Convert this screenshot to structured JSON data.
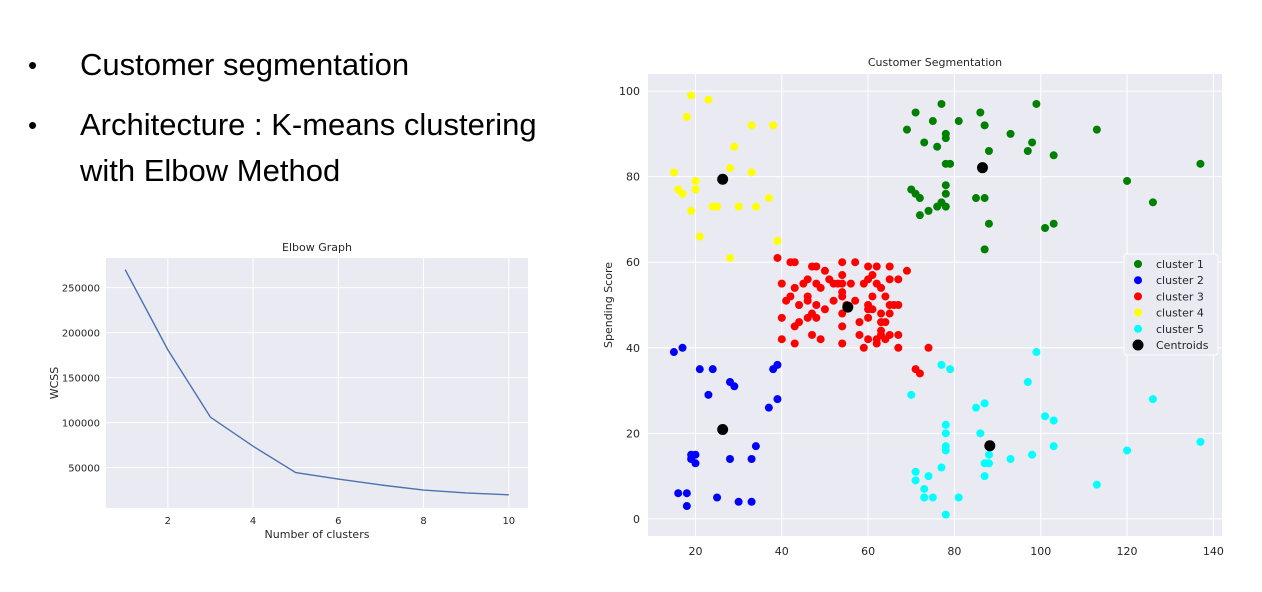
{
  "bullets": [
    {
      "text": "Customer segmentation"
    },
    {
      "text": "Architecture : K-means clustering with Elbow Method"
    }
  ],
  "colors": {
    "plot_bg": "#eaeaf2",
    "grid": "#ffffff",
    "elbow_line": "#4c72b0",
    "cluster_1": "#008000",
    "cluster_2": "#0000ff",
    "cluster_3": "#ff0000",
    "cluster_4": "#ffff00",
    "cluster_5": "#00ffff",
    "centroids": "#000000"
  },
  "chart_data": [
    {
      "type": "line",
      "title": "Elbow Graph",
      "xlabel": "Number of clusters",
      "ylabel": "WCSS",
      "x": [
        1,
        2,
        3,
        4,
        5,
        6,
        7,
        8,
        9,
        10
      ],
      "series": [
        {
          "values": [
            270000,
            181000,
            106000,
            73700,
            44400,
            37200,
            30600,
            25000,
            21800,
            19700
          ]
        }
      ],
      "xticks": [
        2,
        4,
        6,
        8,
        10
      ],
      "yticks": [
        50000,
        100000,
        150000,
        200000,
        250000
      ],
      "xlim": [
        0.55,
        10.45
      ],
      "ylim": [
        5000,
        283000
      ],
      "grid": true
    },
    {
      "type": "scatter",
      "title": "Customer Segmentation",
      "xlabel": "",
      "ylabel": "Spending Score",
      "xticks": [
        20,
        40,
        60,
        80,
        100,
        120,
        140
      ],
      "yticks": [
        0,
        20,
        40,
        60,
        80,
        100
      ],
      "xlim": [
        9,
        142
      ],
      "ylim": [
        -4,
        104
      ],
      "grid": true,
      "legend_position": "center-right",
      "series": [
        {
          "name": "cluster 1",
          "color": "#008000",
          "points": [
            [
              69,
              91
            ],
            [
              71,
              95
            ],
            [
              72,
              75
            ],
            [
              73,
              88
            ],
            [
              74,
              72
            ],
            [
              75,
              93
            ],
            [
              76,
              87
            ],
            [
              77,
              97
            ],
            [
              77,
              74
            ],
            [
              78,
              90
            ],
            [
              78,
              89
            ],
            [
              78,
              78
            ],
            [
              78,
              73
            ],
            [
              79,
              83
            ],
            [
              81,
              93
            ],
            [
              85,
              75
            ],
            [
              86,
              95
            ],
            [
              87,
              92
            ],
            [
              87,
              75
            ],
            [
              88,
              86
            ],
            [
              88,
              69
            ],
            [
              87,
              63
            ],
            [
              93,
              90
            ],
            [
              97,
              86
            ],
            [
              98,
              88
            ],
            [
              99,
              97
            ],
            [
              101,
              68
            ],
            [
              103,
              85
            ],
            [
              103,
              69
            ],
            [
              113,
              91
            ],
            [
              120,
              79
            ],
            [
              126,
              74
            ],
            [
              137,
              83
            ],
            [
              70,
              77
            ],
            [
              71,
              76
            ],
            [
              72,
              71
            ],
            [
              76,
              73
            ],
            [
              78,
              76
            ],
            [
              78,
              83
            ]
          ]
        },
        {
          "name": "cluster 2",
          "color": "#0000ff",
          "points": [
            [
              15,
              39
            ],
            [
              16,
              6
            ],
            [
              17,
              40
            ],
            [
              18,
              6
            ],
            [
              18,
              3
            ],
            [
              19,
              14
            ],
            [
              19,
              15
            ],
            [
              20,
              13
            ],
            [
              20,
              15
            ],
            [
              21,
              35
            ],
            [
              23,
              29
            ],
            [
              24,
              35
            ],
            [
              25,
              5
            ],
            [
              28,
              14
            ],
            [
              28,
              32
            ],
            [
              29,
              31
            ],
            [
              30,
              4
            ],
            [
              33,
              4
            ],
            [
              33,
              14
            ],
            [
              34,
              17
            ],
            [
              37,
              26
            ],
            [
              38,
              35
            ],
            [
              39,
              36
            ],
            [
              39,
              28
            ]
          ]
        },
        {
          "name": "cluster 3",
          "color": "#ff0000",
          "points": [
            [
              39,
              61
            ],
            [
              40,
              47
            ],
            [
              40,
              55
            ],
            [
              40,
              42
            ],
            [
              41,
              51
            ],
            [
              42,
              60
            ],
            [
              42,
              52
            ],
            [
              43,
              60
            ],
            [
              43,
              54
            ],
            [
              43,
              45
            ],
            [
              43,
              41
            ],
            [
              44,
              50
            ],
            [
              44,
              46
            ],
            [
              45,
              55
            ],
            [
              46,
              47
            ],
            [
              46,
              51
            ],
            [
              46,
              56
            ],
            [
              46,
              52
            ],
            [
              47,
              59
            ],
            [
              47,
              48
            ],
            [
              47,
              43
            ],
            [
              48,
              59
            ],
            [
              48,
              47
            ],
            [
              48,
              55
            ],
            [
              48,
              50
            ],
            [
              49,
              42
            ],
            [
              49,
              54
            ],
            [
              50,
              49
            ],
            [
              51,
              56
            ],
            [
              52,
              55
            ],
            [
              54,
              60
            ],
            [
              54,
              57
            ],
            [
              54,
              55
            ],
            [
              54,
              52
            ],
            [
              54,
              48
            ],
            [
              54,
              45
            ],
            [
              54,
              41
            ],
            [
              54,
              53
            ],
            [
              57,
              51
            ],
            [
              58,
              46
            ],
            [
              59,
              55
            ],
            [
              60,
              49
            ],
            [
              60,
              56
            ],
            [
              60,
              59
            ],
            [
              60,
              47
            ],
            [
              60,
              42
            ],
            [
              61,
              49
            ],
            [
              61,
              52
            ],
            [
              62,
              59
            ],
            [
              62,
              55
            ],
            [
              62,
              42
            ],
            [
              62,
              41
            ],
            [
              63,
              54
            ],
            [
              63,
              46
            ],
            [
              63,
              48
            ],
            [
              63,
              43
            ],
            [
              64,
              52
            ],
            [
              64,
              46
            ],
            [
              64,
              42
            ],
            [
              65,
              59
            ],
            [
              65,
              48
            ],
            [
              65,
              50
            ],
            [
              67,
              56
            ],
            [
              67,
              40
            ],
            [
              67,
              50
            ],
            [
              67,
              43
            ],
            [
              69,
              58
            ],
            [
              71,
              35
            ],
            [
              72,
              34
            ],
            [
              57,
              60
            ],
            [
              58,
              43
            ],
            [
              59,
              40
            ],
            [
              60,
              50
            ],
            [
              61,
              57
            ],
            [
              63,
              44
            ],
            [
              65,
              43
            ],
            [
              65,
              56
            ],
            [
              66,
              50
            ],
            [
              55,
              50
            ],
            [
              56,
              55
            ],
            [
              52,
              51
            ],
            [
              53,
              55
            ],
            [
              50,
              58
            ],
            [
              74,
              40
            ]
          ]
        },
        {
          "name": "cluster 4",
          "color": "#ffff00",
          "points": [
            [
              15,
              81
            ],
            [
              16,
              77
            ],
            [
              17,
              76
            ],
            [
              18,
              94
            ],
            [
              19,
              72
            ],
            [
              19,
              99
            ],
            [
              20,
              77
            ],
            [
              20,
              79
            ],
            [
              21,
              66
            ],
            [
              23,
              98
            ],
            [
              24,
              73
            ],
            [
              25,
              73
            ],
            [
              28,
              82
            ],
            [
              28,
              61
            ],
            [
              29,
              87
            ],
            [
              30,
              73
            ],
            [
              33,
              92
            ],
            [
              33,
              81
            ],
            [
              34,
              73
            ],
            [
              37,
              75
            ],
            [
              38,
              92
            ],
            [
              39,
              65
            ]
          ]
        },
        {
          "name": "cluster 5",
          "color": "#00ffff",
          "points": [
            [
              70,
              29
            ],
            [
              71,
              11
            ],
            [
              71,
              9
            ],
            [
              73,
              5
            ],
            [
              73,
              7
            ],
            [
              74,
              10
            ],
            [
              75,
              5
            ],
            [
              77,
              12
            ],
            [
              77,
              36
            ],
            [
              78,
              22
            ],
            [
              78,
              17
            ],
            [
              78,
              16
            ],
            [
              78,
              20
            ],
            [
              78,
              1
            ],
            [
              79,
              35
            ],
            [
              81,
              5
            ],
            [
              85,
              26
            ],
            [
              86,
              20
            ],
            [
              87,
              27
            ],
            [
              87,
              13
            ],
            [
              87,
              10
            ],
            [
              88,
              13
            ],
            [
              88,
              15
            ],
            [
              93,
              14
            ],
            [
              97,
              32
            ],
            [
              98,
              15
            ],
            [
              99,
              39
            ],
            [
              101,
              24
            ],
            [
              103,
              23
            ],
            [
              103,
              17
            ],
            [
              113,
              8
            ],
            [
              120,
              16
            ],
            [
              126,
              28
            ],
            [
              137,
              18
            ]
          ]
        },
        {
          "name": "Centroids",
          "color": "#000000",
          "points": [
            [
              26.3,
              79.4
            ],
            [
              26.3,
              20.9
            ],
            [
              55.3,
              49.5
            ],
            [
              86.5,
              82.1
            ],
            [
              88.2,
              17.1
            ]
          ]
        }
      ]
    }
  ]
}
